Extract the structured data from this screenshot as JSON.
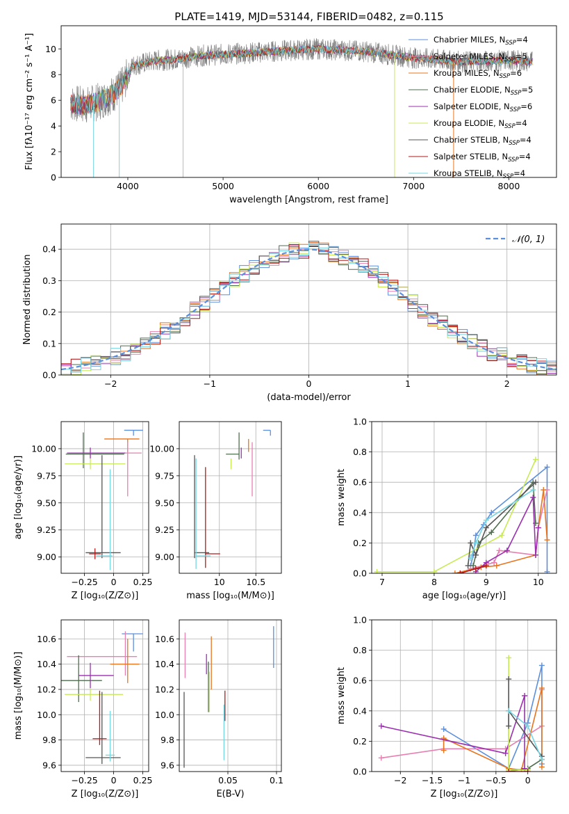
{
  "figure_title": "PLATE=1419, MJD=53144, FIBERID=0482, z=0.115",
  "colors": {
    "chabrier_miles": "#5b8fdc",
    "salpeter_miles": "#e77fb0",
    "kroupa_miles": "#e8741e",
    "chabrier_elodie": "#4e6e4e",
    "salpeter_elodie": "#9b2fb0",
    "kroupa_elodie": "#c8ea55",
    "chabrier_stelib": "#555555",
    "salpeter_stelib": "#b41a1a",
    "kroupa_stelib": "#76d5e2",
    "data": "#808080",
    "normal_curve": "#5b8fdc"
  },
  "legend": [
    {
      "key": "chabrier_miles",
      "label": "Chabrier MILES, N",
      "sub": "SSP",
      "tail": "=4"
    },
    {
      "key": "salpeter_miles",
      "label": "Salpeter MILES, N",
      "sub": "SSP",
      "tail": "=5"
    },
    {
      "key": "kroupa_miles",
      "label": "Kroupa MILES, N",
      "sub": "SSP",
      "tail": "=6"
    },
    {
      "key": "chabrier_elodie",
      "label": "Chabrier ELODIE, N",
      "sub": "SSP",
      "tail": "=5"
    },
    {
      "key": "salpeter_elodie",
      "label": "Salpeter ELODIE, N",
      "sub": "SSP",
      "tail": "=6"
    },
    {
      "key": "kroupa_elodie",
      "label": "Kroupa ELODIE, N",
      "sub": "SSP",
      "tail": "=4"
    },
    {
      "key": "chabrier_stelib",
      "label": "Chabrier STELIB, N",
      "sub": "SSP",
      "tail": "=4"
    },
    {
      "key": "salpeter_stelib",
      "label": "Salpeter STELIB, N",
      "sub": "SSP",
      "tail": "=4"
    },
    {
      "key": "kroupa_stelib",
      "label": "Kroupa STELIB, N",
      "sub": "SSP",
      "tail": "=4"
    }
  ],
  "chart_data": [
    {
      "id": "spectrum",
      "type": "line",
      "xlabel": "wavelength [Angstrom, rest frame]",
      "ylabel": "Flux [fλ10⁻¹⁷ erg cm⁻² s⁻¹ A⁻¹]",
      "xlim": [
        3300,
        8500
      ],
      "ylim": [
        0,
        11.8
      ],
      "xticks": [
        4000,
        5000,
        6000,
        7000,
        8000
      ],
      "yticks": [
        0,
        2,
        4,
        6,
        8,
        10
      ],
      "continuum_x": [
        3400,
        3550,
        3700,
        3850,
        3950,
        4050,
        4300,
        4500,
        4800,
        5100,
        5500,
        6000,
        6500,
        7000,
        7500,
        8000,
        8250
      ],
      "continuum_y": [
        5.8,
        5.6,
        5.9,
        6.5,
        7.2,
        8.7,
        9.1,
        9.2,
        9.5,
        9.6,
        9.8,
        10.0,
        9.8,
        9.3,
        9.0,
        9.1,
        9.0
      ],
      "dips": [
        [
          3640,
          0
        ],
        [
          3910,
          0
        ],
        [
          4580,
          0
        ],
        [
          6800,
          0
        ],
        [
          7420,
          0
        ]
      ]
    },
    {
      "id": "residuals",
      "type": "histogram",
      "xlabel": "(data-model)/error",
      "ylabel": "Normed distribution",
      "xlim": [
        -2.5,
        2.5
      ],
      "ylim": [
        0,
        0.48
      ],
      "xticks": [
        -2,
        -1,
        0,
        1,
        2
      ],
      "yticks": [
        0.0,
        0.1,
        0.2,
        0.3,
        0.4
      ],
      "bins": 50,
      "legend_label": "𝒩(0, 1)"
    },
    {
      "id": "age_vs_Z",
      "type": "scatter",
      "xlabel": "Z [log₁₀(Z/Z⊙)]",
      "ylabel": "age  [log₁₀(age/yr)]",
      "xlim": [
        -0.45,
        0.3
      ],
      "ylim": [
        8.85,
        10.25
      ],
      "xticks": [
        -0.25,
        0.0,
        0.25
      ],
      "yticks": [
        9.0,
        9.25,
        9.5,
        9.75,
        10.0
      ],
      "points": [
        {
          "key": "chabrier_miles",
          "x": 0.17,
          "y": 10.17,
          "xerr": [
            0.08,
            0.08
          ],
          "yerr": [
            0.05,
            0.0
          ]
        },
        {
          "key": "kroupa_miles",
          "x": 0.12,
          "y": 10.09,
          "xerr": [
            0.2,
            0.1
          ],
          "yerr": [
            0.12,
            0.0
          ]
        },
        {
          "key": "salpeter_miles",
          "x": 0.12,
          "y": 9.96,
          "xerr": [
            0.5,
            0.12
          ],
          "yerr": [
            0.4,
            0.1
          ]
        },
        {
          "key": "chabrier_elodie",
          "x": -0.26,
          "y": 9.95,
          "xerr": [
            0.15,
            0.35
          ],
          "yerr": [
            0.13,
            0.2
          ]
        },
        {
          "key": "salpeter_elodie",
          "x": -0.2,
          "y": 9.96,
          "xerr": [
            0.2,
            0.3
          ],
          "yerr": [
            0.05,
            0.05
          ]
        },
        {
          "key": "kroupa_elodie",
          "x": -0.2,
          "y": 9.86,
          "xerr": [
            0.22,
            0.3
          ],
          "yerr": [
            0.05,
            0.05
          ]
        },
        {
          "key": "chabrier_stelib",
          "x": -0.1,
          "y": 9.04,
          "xerr": [
            0.14,
            0.16
          ],
          "yerr": [
            0.05,
            0.9
          ]
        },
        {
          "key": "salpeter_stelib",
          "x": -0.16,
          "y": 9.03,
          "xerr": [
            0.05,
            0.05
          ],
          "yerr": [
            0.05,
            0.05
          ]
        },
        {
          "key": "kroupa_stelib",
          "x": -0.03,
          "y": 9.01,
          "xerr": [
            0.12,
            0.02
          ],
          "yerr": [
            0.13,
            0.8
          ]
        }
      ]
    },
    {
      "id": "age_vs_mass",
      "type": "scatter",
      "xlabel": "mass [log₁₀(M/M⊙)]",
      "ylabel": "",
      "xlim": [
        9.45,
        10.85
      ],
      "ylim": [
        8.85,
        10.25
      ],
      "xticks": [
        10.0,
        10.5
      ],
      "yticks": [
        9.0,
        9.25,
        9.5,
        9.75,
        10.0
      ],
      "points": [
        {
          "key": "chabrier_miles",
          "x": 10.7,
          "y": 10.17,
          "xerr": [
            0.1,
            0.0
          ],
          "yerr": [
            0.05,
            0.0
          ]
        },
        {
          "key": "kroupa_miles",
          "x": 10.4,
          "y": 10.09,
          "xerr": [
            0.0,
            0.0
          ],
          "yerr": [
            0.12,
            0.0
          ]
        },
        {
          "key": "salpeter_miles",
          "x": 10.45,
          "y": 9.96,
          "xerr": [
            0.0,
            0.0
          ],
          "yerr": [
            0.4,
            0.1
          ]
        },
        {
          "key": "chabrier_elodie",
          "x": 10.27,
          "y": 9.95,
          "xerr": [
            0.18,
            0.0
          ],
          "yerr": [
            0.05,
            0.2
          ]
        },
        {
          "key": "salpeter_elodie",
          "x": 10.3,
          "y": 9.96,
          "xerr": [
            0.0,
            0.0
          ],
          "yerr": [
            0.05,
            0.05
          ]
        },
        {
          "key": "kroupa_elodie",
          "x": 10.16,
          "y": 9.86,
          "xerr": [
            0.0,
            0.0
          ],
          "yerr": [
            0.05,
            0.05
          ]
        },
        {
          "key": "chabrier_stelib",
          "x": 9.66,
          "y": 9.04,
          "xerr": [
            0.0,
            0.2
          ],
          "yerr": [
            0.05,
            0.9
          ]
        },
        {
          "key": "salpeter_stelib",
          "x": 9.81,
          "y": 9.03,
          "xerr": [
            0.0,
            0.2
          ],
          "yerr": [
            0.13,
            0.8
          ]
        },
        {
          "key": "kroupa_stelib",
          "x": 9.68,
          "y": 9.01,
          "xerr": [
            0.0,
            0.2
          ],
          "yerr": [
            0.12,
            0.9
          ]
        }
      ]
    },
    {
      "id": "weight_vs_age",
      "type": "line",
      "xlabel": "age  [log₁₀(age/yr)]",
      "ylabel": "mass weight",
      "xlim": [
        6.8,
        10.35
      ],
      "ylim": [
        0,
        1.0
      ],
      "xticks": [
        7,
        8,
        9,
        10
      ],
      "yticks": [
        0.0,
        0.2,
        0.4,
        0.6,
        0.8,
        1.0
      ],
      "series": [
        {
          "key": "chabrier_miles",
          "x": [
            8.7,
            8.75,
            8.8,
            8.95,
            9.1,
            10.17,
            10.17
          ],
          "y": [
            0.05,
            0.12,
            0.25,
            0.32,
            0.4,
            0.7,
            0.01
          ]
        },
        {
          "key": "salpeter_miles",
          "x": [
            8.5,
            8.7,
            9.15,
            9.25,
            9.95,
            10.0,
            10.17
          ],
          "y": [
            0.0,
            0.03,
            0.07,
            0.15,
            0.12,
            0.3,
            0.55
          ]
        },
        {
          "key": "kroupa_miles",
          "x": [
            8.4,
            8.9,
            9.2,
            9.95,
            10.0,
            10.1,
            10.17
          ],
          "y": [
            0.0,
            0.04,
            0.05,
            0.12,
            0.3,
            0.55,
            0.22
          ]
        },
        {
          "key": "chabrier_elodie",
          "x": [
            8.75,
            8.8,
            8.85,
            9.1,
            9.9,
            9.95
          ],
          "y": [
            0.05,
            0.12,
            0.2,
            0.27,
            0.6,
            0.33
          ]
        },
        {
          "key": "salpeter_elodie",
          "x": [
            8.8,
            9.0,
            9.4,
            9.9,
            9.95,
            10.0
          ],
          "y": [
            0.01,
            0.07,
            0.15,
            0.5,
            0.12,
            0.3
          ]
        },
        {
          "key": "kroupa_elodie",
          "x": [
            6.9,
            8.0,
            9.3,
            9.95
          ],
          "y": [
            0.01,
            0.01,
            0.25,
            0.75
          ]
        },
        {
          "key": "chabrier_stelib",
          "x": [
            8.65,
            8.7,
            8.8,
            9.0,
            9.95
          ],
          "y": [
            0.05,
            0.2,
            0.12,
            0.3,
            0.6
          ]
        },
        {
          "key": "salpeter_stelib",
          "x": [
            8.5,
            8.8,
            9.0
          ],
          "y": [
            0.0,
            0.03,
            0.05
          ]
        },
        {
          "key": "kroupa_stelib",
          "x": [
            8.7,
            8.8,
            9.0,
            9.9
          ],
          "y": [
            0.1,
            0.2,
            0.35,
            0.55
          ]
        }
      ]
    },
    {
      "id": "mass_vs_Z",
      "type": "scatter",
      "xlabel": "Z [log₁₀(Z/Z⊙)]",
      "ylabel": "mass [log₁₀(M/M⊙)]",
      "xlim": [
        -0.45,
        0.3
      ],
      "ylim": [
        9.55,
        10.75
      ],
      "xticks": [
        -0.25,
        0.0,
        0.25
      ],
      "yticks": [
        9.6,
        9.8,
        10.0,
        10.2,
        10.4,
        10.6
      ],
      "points": [
        {
          "key": "chabrier_miles",
          "x": 0.17,
          "y": 10.64,
          "xerr": [
            0.1,
            0.08
          ],
          "yerr": [
            0.14,
            0.0
          ]
        },
        {
          "key": "salpeter_miles",
          "x": 0.1,
          "y": 10.46,
          "xerr": [
            0.5,
            0.1
          ],
          "yerr": [
            0.15,
            0.2
          ]
        },
        {
          "key": "kroupa_miles",
          "x": 0.12,
          "y": 10.4,
          "xerr": [
            0.15,
            0.1
          ],
          "yerr": [
            0.15,
            0.2
          ]
        },
        {
          "key": "chabrier_elodie",
          "x": -0.3,
          "y": 10.27,
          "xerr": [
            0.15,
            0.2
          ],
          "yerr": [
            0.17,
            0.2
          ]
        },
        {
          "key": "salpeter_elodie",
          "x": -0.2,
          "y": 10.31,
          "xerr": [
            0.1,
            0.2
          ],
          "yerr": [
            0.1,
            0.1
          ]
        },
        {
          "key": "kroupa_elodie",
          "x": -0.2,
          "y": 10.16,
          "xerr": [
            0.22,
            0.28
          ],
          "yerr": [
            0.05,
            0.05
          ]
        },
        {
          "key": "chabrier_stelib",
          "x": -0.1,
          "y": 9.66,
          "xerr": [
            0.14,
            0.16
          ],
          "yerr": [
            0.05,
            0.52
          ]
        },
        {
          "key": "salpeter_stelib",
          "x": -0.12,
          "y": 9.81,
          "xerr": [
            0.06,
            0.06
          ],
          "yerr": [
            0.05,
            0.38
          ]
        },
        {
          "key": "kroupa_stelib",
          "x": -0.03,
          "y": 9.68,
          "xerr": [
            0.04,
            0.04
          ],
          "yerr": [
            0.05,
            0.35
          ]
        }
      ]
    },
    {
      "id": "mass_vs_EBV",
      "type": "scatter",
      "xlabel": "E(B-V)",
      "ylabel": "",
      "xlim": [
        0.0,
        0.105
      ],
      "ylim": [
        9.55,
        10.75
      ],
      "xticks": [
        0.05,
        0.1
      ],
      "yticks": [
        9.6,
        9.8,
        10.0,
        10.2,
        10.4,
        10.6
      ],
      "points": [
        {
          "key": "chabrier_miles",
          "x": 0.097,
          "y": 10.54,
          "xerr": [
            0,
            0
          ],
          "yerr": [
            0.17,
            0.16
          ]
        },
        {
          "key": "salpeter_miles",
          "x": 0.006,
          "y": 10.47,
          "xerr": [
            0,
            0
          ],
          "yerr": [
            0.18,
            0.18
          ]
        },
        {
          "key": "kroupa_miles",
          "x": 0.033,
          "y": 10.4,
          "xerr": [
            0,
            0
          ],
          "yerr": [
            0.2,
            0.22
          ]
        },
        {
          "key": "chabrier_elodie",
          "x": 0.03,
          "y": 10.22,
          "xerr": [
            0,
            0
          ],
          "yerr": [
            0.2,
            0.2
          ]
        },
        {
          "key": "salpeter_elodie",
          "x": 0.028,
          "y": 10.4,
          "xerr": [
            0,
            0
          ],
          "yerr": [
            0.08,
            0.08
          ]
        },
        {
          "key": "kroupa_elodie",
          "x": 0.031,
          "y": 10.16,
          "xerr": [
            0,
            0
          ],
          "yerr": [
            0.14,
            0.18
          ]
        },
        {
          "key": "chabrier_stelib",
          "x": 0.005,
          "y": 9.88,
          "xerr": [
            0,
            0
          ],
          "yerr": [
            0.3,
            0.3
          ]
        },
        {
          "key": "salpeter_stelib",
          "x": 0.047,
          "y": 10.07,
          "xerr": [
            0,
            0
          ],
          "yerr": [
            0.12,
            0.12
          ]
        },
        {
          "key": "kroupa_stelib",
          "x": 0.046,
          "y": 9.86,
          "xerr": [
            0,
            0
          ],
          "yerr": [
            0.22,
            0.22
          ]
        }
      ]
    },
    {
      "id": "weight_vs_Z",
      "type": "line",
      "xlabel": "Z [log₁₀(Z/Z⊙)]",
      "ylabel": "mass weight",
      "xlim": [
        -2.45,
        0.45
      ],
      "ylim": [
        0,
        1.0
      ],
      "xticks": [
        -2.0,
        -1.5,
        -1.0,
        -0.5,
        0.0
      ],
      "yticks": [
        0.0,
        0.2,
        0.4,
        0.6,
        0.8,
        1.0
      ],
      "series": [
        {
          "key": "chabrier_miles",
          "x": [
            -1.32,
            -0.3,
            0.0,
            0.22,
            0.22
          ],
          "y": [
            0.28,
            0.02,
            0.32,
            0.7,
            0.05
          ]
        },
        {
          "key": "salpeter_miles",
          "x": [
            -2.3,
            -1.32,
            -0.35,
            0.22,
            0.22
          ],
          "y": [
            0.09,
            0.15,
            0.15,
            0.3,
            0.54
          ]
        },
        {
          "key": "kroupa_miles",
          "x": [
            -1.32,
            -1.32,
            -0.3,
            -0.1,
            0.22,
            0.22
          ],
          "y": [
            0.14,
            0.22,
            0.02,
            0.01,
            0.55,
            0.03
          ]
        },
        {
          "key": "chabrier_elodie",
          "x": [
            -0.3,
            -0.3,
            0.0,
            0.22
          ],
          "y": [
            0.4,
            0.0,
            0.02,
            0.08
          ]
        },
        {
          "key": "salpeter_elodie",
          "x": [
            -2.3,
            -0.35,
            -0.05,
            -0.05
          ],
          "y": [
            0.3,
            0.12,
            0.5,
            0.02
          ]
        },
        {
          "key": "kroupa_elodie",
          "x": [
            -0.3,
            -0.3,
            0.0
          ],
          "y": [
            0.75,
            0.01,
            0.01
          ]
        },
        {
          "key": "chabrier_stelib",
          "x": [
            -0.3,
            -0.3,
            -0.3,
            0.22
          ],
          "y": [
            0.61,
            0.3,
            0.4,
            0.1
          ]
        },
        {
          "key": "salpeter_stelib",
          "x": [
            -0.3,
            0.0
          ],
          "y": [
            0.0,
            0.0
          ]
        },
        {
          "key": "kroupa_stelib",
          "x": [
            -0.3,
            0.0,
            0.22
          ],
          "y": [
            0.4,
            0.3,
            0.08
          ]
        }
      ]
    }
  ]
}
